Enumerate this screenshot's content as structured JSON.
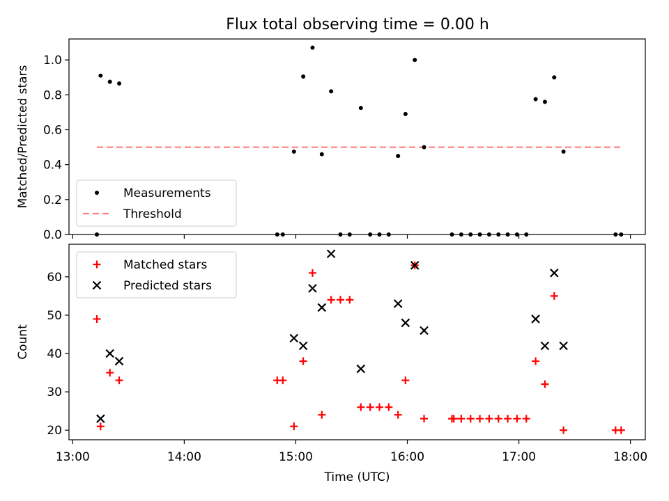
{
  "chart_data": [
    {
      "type": "scatter",
      "title": "Flux total observing time = 0.00 h",
      "xlabel": "",
      "ylabel": "Matched/Predicted stars",
      "xlim": [
        "12:58",
        "18:08"
      ],
      "ylim": [
        0,
        1.12
      ],
      "yticks": [
        "0.0",
        "0.2",
        "0.4",
        "0.6",
        "0.8",
        "1.0"
      ],
      "legend": "lower-left",
      "series": [
        {
          "name": "Measurements",
          "marker": "dot",
          "color": "#000000",
          "points": [
            [
              "13:13",
              0.0
            ],
            [
              "13:15",
              0.91
            ],
            [
              "13:20",
              0.875
            ],
            [
              "13:25",
              0.865
            ],
            [
              "14:50",
              0.0
            ],
            [
              "14:53",
              0.0
            ],
            [
              "14:59",
              0.475
            ],
            [
              "15:04",
              0.905
            ],
            [
              "15:09",
              1.07
            ],
            [
              "15:14",
              0.46
            ],
            [
              "15:19",
              0.82
            ],
            [
              "15:24",
              0.0
            ],
            [
              "15:29",
              0.0
            ],
            [
              "15:35",
              0.725
            ],
            [
              "15:40",
              0.0
            ],
            [
              "15:45",
              0.0
            ],
            [
              "15:50",
              0.0
            ],
            [
              "15:55",
              0.45
            ],
            [
              "15:59",
              0.69
            ],
            [
              "16:04",
              1.0
            ],
            [
              "16:09",
              0.5
            ],
            [
              "16:24",
              0.0
            ],
            [
              "16:29",
              0.0
            ],
            [
              "16:34",
              0.0
            ],
            [
              "16:39",
              0.0
            ],
            [
              "16:44",
              0.0
            ],
            [
              "16:49",
              0.0
            ],
            [
              "16:54",
              0.0
            ],
            [
              "16:59",
              0.0
            ],
            [
              "17:04",
              0.0
            ],
            [
              "17:09",
              0.775
            ],
            [
              "17:14",
              0.76
            ],
            [
              "17:19",
              0.9
            ],
            [
              "17:24",
              0.475
            ],
            [
              "17:52",
              0.0
            ],
            [
              "17:55",
              0.0
            ]
          ]
        },
        {
          "name": "Threshold",
          "marker": "dashed-line",
          "color": "#ff7f7f",
          "points": [
            [
              "13:13",
              0.5
            ],
            [
              "17:55",
              0.5
            ]
          ]
        }
      ]
    },
    {
      "type": "scatter",
      "title": "",
      "xlabel": "Time (UTC)",
      "ylabel": "Count",
      "xlim": [
        "12:58",
        "18:08"
      ],
      "ylim": [
        17.5,
        68.5
      ],
      "xticks": [
        "13:00",
        "14:00",
        "15:00",
        "16:00",
        "17:00",
        "18:00"
      ],
      "yticks": [
        "20",
        "30",
        "40",
        "50",
        "60"
      ],
      "legend": "upper-left",
      "series": [
        {
          "name": "Matched stars",
          "marker": "plus",
          "color": "#ff0000",
          "points": [
            [
              "13:13",
              49
            ],
            [
              "13:15",
              21
            ],
            [
              "13:20",
              35
            ],
            [
              "13:25",
              33
            ],
            [
              "14:50",
              33
            ],
            [
              "14:53",
              33
            ],
            [
              "14:59",
              21
            ],
            [
              "15:04",
              38
            ],
            [
              "15:09",
              61
            ],
            [
              "15:14",
              24
            ],
            [
              "15:19",
              54
            ],
            [
              "15:24",
              54
            ],
            [
              "15:29",
              54
            ],
            [
              "15:35",
              26
            ],
            [
              "15:40",
              26
            ],
            [
              "15:45",
              26
            ],
            [
              "15:50",
              26
            ],
            [
              "15:55",
              24
            ],
            [
              "15:59",
              33
            ],
            [
              "16:04",
              63
            ],
            [
              "16:09",
              23
            ],
            [
              "16:24",
              23
            ],
            [
              "16:25",
              23
            ],
            [
              "16:29",
              23
            ],
            [
              "16:34",
              23
            ],
            [
              "16:39",
              23
            ],
            [
              "16:44",
              23
            ],
            [
              "16:49",
              23
            ],
            [
              "16:54",
              23
            ],
            [
              "16:59",
              23
            ],
            [
              "17:04",
              23
            ],
            [
              "17:09",
              38
            ],
            [
              "17:14",
              32
            ],
            [
              "17:19",
              55
            ],
            [
              "17:24",
              20
            ],
            [
              "17:52",
              20
            ],
            [
              "17:55",
              20
            ]
          ]
        },
        {
          "name": "Predicted stars",
          "marker": "x",
          "color": "#000000",
          "points": [
            [
              "13:15",
              23
            ],
            [
              "13:20",
              40
            ],
            [
              "13:25",
              38
            ],
            [
              "14:59",
              44
            ],
            [
              "15:04",
              42
            ],
            [
              "15:09",
              57
            ],
            [
              "15:14",
              52
            ],
            [
              "15:19",
              66
            ],
            [
              "15:35",
              36
            ],
            [
              "15:55",
              53
            ],
            [
              "15:59",
              48
            ],
            [
              "16:04",
              63
            ],
            [
              "16:09",
              46
            ],
            [
              "17:09",
              49
            ],
            [
              "17:14",
              42
            ],
            [
              "17:19",
              61
            ],
            [
              "17:24",
              42
            ]
          ]
        }
      ]
    }
  ]
}
